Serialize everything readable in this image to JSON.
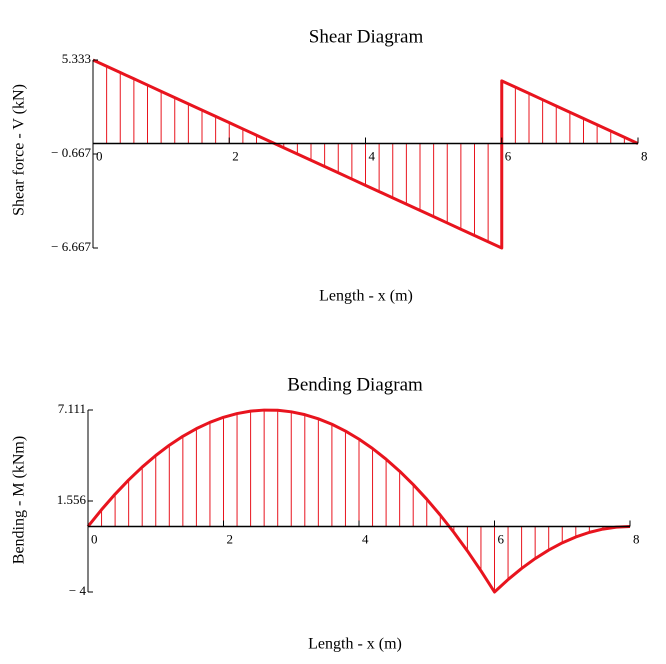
{
  "chart_data": [
    {
      "type": "line",
      "title": "Shear Diagram",
      "x_label": "Length - x (m)",
      "y_label": "Shear force - V (kN)",
      "color": "#e8141e",
      "x": [
        0,
        0.2,
        0.4,
        0.6,
        0.8,
        1,
        1.2,
        1.4,
        1.6,
        1.8,
        2,
        2.2,
        2.4,
        2.6,
        2.8,
        3,
        3.2,
        3.4,
        3.6,
        3.8,
        4,
        4.2,
        4.4,
        4.6,
        4.8,
        5,
        5.2,
        5.4,
        5.6,
        5.8,
        6,
        6,
        6.2,
        6.4,
        6.6,
        6.8,
        7,
        7.2,
        7.4,
        7.6,
        7.8,
        8
      ],
      "values": [
        5.333,
        4.933,
        4.533,
        4.133,
        3.733,
        3.333,
        2.933,
        2.533,
        2.133,
        1.733,
        1.333,
        0.933,
        0.533,
        0.133,
        -0.267,
        -0.667,
        -1.067,
        -1.467,
        -1.867,
        -2.267,
        -2.667,
        -3.067,
        -3.467,
        -3.867,
        -4.267,
        -4.667,
        -5.067,
        -5.467,
        -5.867,
        -6.267,
        -6.667,
        4,
        3.6,
        3.2,
        2.8,
        2.4,
        2,
        1.6,
        1.2,
        0.8,
        0.4,
        0
      ],
      "xlim": [
        0,
        8
      ],
      "xticks": [
        0,
        2,
        4,
        6,
        8
      ],
      "ylim": [
        -6.667,
        5.333
      ],
      "yticks": [
        5.333,
        {
          "value": -0.667,
          "label": "− 0.667"
        },
        {
          "value": -6.667,
          "label": "− 6.667"
        }
      ]
    },
    {
      "type": "line",
      "title": "Bending Diagram",
      "x_label": "Length - x (m)",
      "y_label": "Bending - M (kNm)",
      "color": "#e8141e",
      "x": [
        0,
        0.2,
        0.4,
        0.6,
        0.8,
        1,
        1.2,
        1.4,
        1.6,
        1.8,
        2,
        2.2,
        2.4,
        2.6,
        2.8,
        3,
        3.2,
        3.4,
        3.6,
        3.8,
        4,
        4.2,
        4.4,
        4.6,
        4.8,
        5,
        5.2,
        5.4,
        5.6,
        5.8,
        6,
        6.2,
        6.4,
        6.6,
        6.8,
        7,
        7.2,
        7.4,
        7.6,
        7.8,
        8
      ],
      "values": [
        0,
        1.027,
        1.973,
        2.84,
        3.627,
        4.333,
        4.96,
        5.507,
        5.973,
        6.36,
        6.667,
        6.893,
        7.04,
        7.107,
        7.093,
        7,
        6.827,
        6.573,
        6.24,
        5.827,
        5.333,
        4.76,
        4.107,
        3.373,
        2.56,
        1.667,
        0.693,
        -0.36,
        -1.493,
        -2.707,
        -4,
        -3.24,
        -2.56,
        -1.96,
        -1.44,
        -1,
        -0.64,
        -0.36,
        -0.16,
        -0.04,
        0
      ],
      "xlim": [
        0,
        8
      ],
      "xticks": [
        0,
        2,
        4,
        6,
        8
      ],
      "ylim": [
        -4,
        7.111
      ],
      "yticks": [
        7.111,
        1.556,
        {
          "value": -4,
          "label": "− 4"
        }
      ]
    }
  ]
}
